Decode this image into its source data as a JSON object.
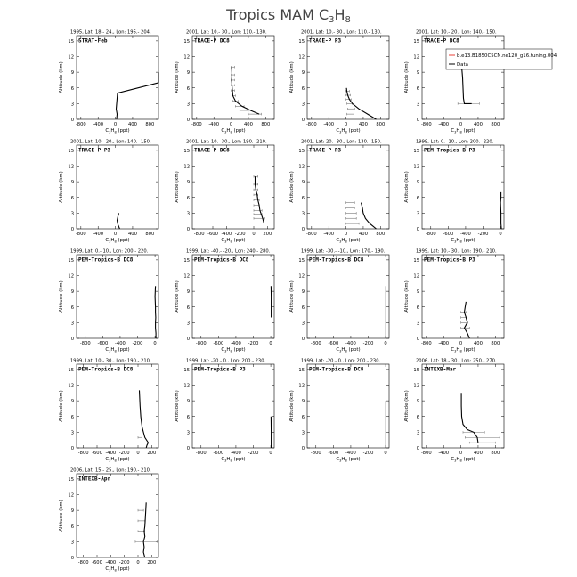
{
  "figure": {
    "title_main": "Tropics MAM C",
    "title_sub": "3",
    "title_main2": "H",
    "title_sub2": "8"
  },
  "axis_common": {
    "ylabel": "Altitude (km)",
    "xlabel_a": "C",
    "xlabel_sub1": "3",
    "xlabel_b": "H",
    "xlabel_sub2": "8",
    "xlabel_c": " (ppt)",
    "yticks": [
      "0",
      "3",
      "6",
      "9",
      "12",
      "15"
    ]
  },
  "legend": {
    "model": "b.e13.B1850C5CN.ne120_g16.tuning.004",
    "data": "Data",
    "colors": {
      "model": "#e8413a",
      "data": "#000000"
    }
  },
  "chart_data": [
    {
      "type": "line",
      "header": "1995, Lat: 18.- 24., Lon: 195.- 204.",
      "tag": "STRAT-Feb",
      "xticks": [
        "-800",
        "-400",
        "0",
        "400",
        "800"
      ],
      "xlim": [
        -900,
        1000
      ],
      "ylim": [
        0,
        16
      ],
      "series": [
        {
          "x": [
            30,
            40,
            20,
            30,
            40,
            50,
            1000,
            1000
          ],
          "y": [
            0,
            1,
            2,
            3,
            4,
            5,
            7,
            9
          ]
        }
      ],
      "errs": []
    },
    {
      "type": "line",
      "header": "2001, Lat: 10.- 30., Lon: 110.- 130.",
      "tag": "TRACE-P DC8",
      "xticks": [
        "-800",
        "-400",
        "0",
        "400",
        "800"
      ],
      "xlim": [
        -900,
        1000
      ],
      "ylim": [
        0,
        16
      ],
      "series": [
        {
          "x": [
            650,
            450,
            250,
            100,
            40,
            30,
            20,
            10,
            20,
            10
          ],
          "y": [
            1,
            1.7,
            2.5,
            3.5,
            4.5,
            5.5,
            6.5,
            7.5,
            8.5,
            10
          ]
        }
      ],
      "errs": [
        [
          550,
          150,
          1
        ],
        [
          300,
          100,
          1.7
        ],
        [
          200,
          100,
          2.5
        ],
        [
          100,
          60,
          3.5
        ],
        [
          60,
          40,
          4.5
        ],
        [
          40,
          40,
          5.5
        ],
        [
          40,
          40,
          6.5
        ],
        [
          40,
          40,
          7.5
        ],
        [
          40,
          40,
          8.5
        ],
        [
          40,
          40,
          10
        ]
      ]
    },
    {
      "type": "line",
      "header": "2001, Lat: 10.- 30., Lon: 110.- 130.",
      "tag": "TRACE-P P3",
      "xticks": [
        "-800",
        "-400",
        "0",
        "400",
        "800"
      ],
      "xlim": [
        -900,
        1000
      ],
      "ylim": [
        0,
        16
      ],
      "series": [
        {
          "x": [
            700,
            500,
            300,
            150,
            80,
            40,
            20,
            10
          ],
          "y": [
            0,
            1,
            2,
            3,
            3.8,
            4.6,
            5.4,
            6
          ]
        }
      ],
      "errs": [
        [
          100,
          80,
          1
        ],
        [
          120,
          80,
          2
        ],
        [
          80,
          60,
          3
        ],
        [
          60,
          60,
          3.8
        ],
        [
          50,
          50,
          4.6
        ],
        [
          40,
          40,
          5.4
        ]
      ]
    },
    {
      "type": "line",
      "header": "2001, Lat: 10.- 20., Lon: 140.- 150.",
      "tag": "TRACE-P DC8",
      "xticks": [
        "-800",
        "-400",
        "0",
        "400",
        "800"
      ],
      "xlim": [
        -900,
        1000
      ],
      "ylim": [
        0,
        16
      ],
      "series": [
        {
          "x": [
            250,
            80,
            60,
            50,
            40,
            30,
            20
          ],
          "y": [
            3,
            3,
            4,
            6,
            8,
            9,
            10
          ]
        }
      ],
      "errs": [
        [
          180,
          250,
          3
        ]
      ]
    },
    {
      "type": "line",
      "header": "2001, Lat: 10.- 20., Lon: 140.- 150.",
      "tag": "TRACE-P P3",
      "xticks": [
        "-800",
        "-400",
        "0",
        "400",
        "800"
      ],
      "xlim": [
        -900,
        1000
      ],
      "ylim": [
        0,
        16
      ],
      "series": [
        {
          "x": [
            100,
            60,
            40,
            60,
            80
          ],
          "y": [
            0,
            0.8,
            1.6,
            2.4,
            3
          ]
        }
      ],
      "errs": []
    },
    {
      "type": "line",
      "header": "2001, Lat: 10.- 30., Lon: 190.- 210.",
      "tag": "TRACE-P DC8",
      "xticks": [
        "-800",
        "-600",
        "-400",
        "-200",
        "0",
        "200"
      ],
      "xlim": [
        -900,
        300
      ],
      "ylim": [
        0,
        16
      ],
      "series": [
        {
          "x": [
            150,
            130,
            110,
            90,
            80,
            60,
            50,
            30,
            20,
            20
          ],
          "y": [
            1,
            2,
            2.8,
            3.5,
            4.5,
            5.5,
            6.5,
            7.5,
            8.5,
            10
          ]
        }
      ],
      "errs": [
        [
          80,
          80,
          2
        ],
        [
          60,
          60,
          2.8
        ],
        [
          60,
          60,
          3.5
        ],
        [
          40,
          40,
          4.5
        ],
        [
          40,
          40,
          5.5
        ],
        [
          30,
          30,
          6.5
        ],
        [
          30,
          30,
          7.5
        ],
        [
          30,
          30,
          8.5
        ],
        [
          30,
          30,
          10
        ]
      ]
    },
    {
      "type": "line",
      "header": "2001, Lat: 20.- 30., Lon: 130.- 150.",
      "tag": "TRACE-P P3",
      "xticks": [
        "-800",
        "-400",
        "0",
        "400",
        "800"
      ],
      "xlim": [
        -900,
        1000
      ],
      "ylim": [
        0,
        16
      ],
      "series": [
        {
          "x": [
            700,
            550,
            450,
            400,
            380,
            350
          ],
          "y": [
            0,
            1,
            2,
            3,
            4,
            5
          ]
        }
      ],
      "errs": [
        [
          150,
          150,
          1
        ],
        [
          120,
          120,
          2
        ],
        [
          120,
          120,
          3
        ],
        [
          100,
          100,
          4
        ],
        [
          100,
          100,
          5
        ]
      ]
    },
    {
      "type": "line",
      "header": "1999, Lat: 0.- 10., Lon: 200.- 220.",
      "tag": "PEM-Tropics-B P3",
      "xticks": [
        "-800",
        "-600",
        "-400",
        "-200",
        "0"
      ],
      "xlim": [
        -900,
        40
      ],
      "ylim": [
        0,
        16
      ],
      "series": [
        {
          "x": [
            10,
            5,
            5,
            0,
            5,
            5
          ],
          "y": [
            0,
            1,
            3,
            5,
            6,
            7
          ]
        }
      ],
      "errs": []
    },
    {
      "type": "line",
      "header": "1999, Lat: 0.- 10., Lon: 200.- 220.",
      "tag": "PEM-Tropics-B DC8",
      "xticks": [
        "-800",
        "-600",
        "-400",
        "-200",
        "0"
      ],
      "xlim": [
        -900,
        40
      ],
      "ylim": [
        0,
        16
      ],
      "series": [
        {
          "x": [
            10,
            10,
            5,
            5,
            8,
            5,
            5,
            0,
            5
          ],
          "y": [
            0,
            1,
            2,
            3,
            4,
            5,
            6,
            8,
            10
          ]
        }
      ],
      "errs": []
    },
    {
      "type": "line",
      "header": "1999, Lat: -40.- -20., Lon: 240.- 280.",
      "tag": "PEM-Tropics-B DC8",
      "xticks": [
        "-800",
        "-600",
        "-400",
        "-200",
        "0"
      ],
      "xlim": [
        -900,
        40
      ],
      "ylim": [
        0,
        16
      ],
      "series": [
        {
          "x": [
            5,
            5,
            5,
            3
          ],
          "y": [
            4,
            6,
            8,
            10
          ]
        }
      ],
      "errs": []
    },
    {
      "type": "line",
      "header": "1999, Lat: -30.- -10., Lon: 170.- 190.",
      "tag": "PEM-Tropics-B DC8",
      "xticks": [
        "-800",
        "-600",
        "-400",
        "-200",
        "0"
      ],
      "xlim": [
        -900,
        40
      ],
      "ylim": [
        0,
        16
      ],
      "series": [
        {
          "x": [
            3,
            3,
            3
          ],
          "y": [
            0,
            5,
            10
          ]
        }
      ],
      "errs": []
    },
    {
      "type": "line",
      "header": "1999, Lat: 10.- 30., Lon: 190.- 210.",
      "tag": "PEM-Tropics-B P3",
      "xticks": [
        "-800",
        "-400",
        "0",
        "400",
        "800"
      ],
      "xlim": [
        -900,
        1000
      ],
      "ylim": [
        0,
        16
      ],
      "series": [
        {
          "x": [
            200,
            150,
            80,
            150,
            120,
            80,
            100,
            120
          ],
          "y": [
            0,
            1,
            2,
            3,
            4,
            5,
            6,
            7
          ]
        }
      ],
      "errs": [
        [
          100,
          100,
          2
        ],
        [
          80,
          80,
          3
        ],
        [
          60,
          60,
          4
        ],
        [
          60,
          60,
          5
        ]
      ]
    },
    {
      "type": "line",
      "header": "1999, Lat: 10.- 30., Lon: 190.- 210.",
      "tag": "PEM-Tropics-B DC8",
      "xticks": [
        "-800",
        "-600",
        "-400",
        "-200",
        "0",
        "200"
      ],
      "xlim": [
        -900,
        300
      ],
      "ylim": [
        0,
        16
      ],
      "series": [
        {
          "x": [
            120,
            130,
            150,
            100,
            80,
            60,
            50,
            40,
            30,
            20
          ],
          "y": [
            0,
            0.5,
            1,
            2,
            3,
            4,
            5,
            6,
            8,
            11
          ]
        }
      ],
      "errs": [
        [
          30,
          30,
          2
        ]
      ]
    },
    {
      "type": "line",
      "header": "1999, Lat: -20.- 0., Lon: 200.- 230.",
      "tag": "PEM-Tropics-B P3",
      "xticks": [
        "-800",
        "-600",
        "-400",
        "-200",
        "0"
      ],
      "xlim": [
        -900,
        40
      ],
      "ylim": [
        0,
        16
      ],
      "series": [
        {
          "x": [
            5,
            5,
            3
          ],
          "y": [
            0,
            3,
            6
          ]
        }
      ],
      "errs": []
    },
    {
      "type": "line",
      "header": "1999, Lat: -20.- 0., Lon: 200.- 230.",
      "tag": "PEM-Tropics-B DC8",
      "xticks": [
        "-800",
        "-600",
        "-400",
        "-200",
        "0"
      ],
      "xlim": [
        -900,
        40
      ],
      "ylim": [
        0,
        16
      ],
      "series": [
        {
          "x": [
            3,
            3,
            3
          ],
          "y": [
            0,
            4,
            9
          ]
        }
      ],
      "errs": []
    },
    {
      "type": "line",
      "header": "2006, Lat: 18.- 30., Lon: 250.- 270.",
      "tag": "INTEXB-Mar",
      "xticks": [
        "-800",
        "-400",
        "0",
        "400",
        "800"
      ],
      "xlim": [
        -900,
        1000
      ],
      "ylim": [
        0,
        16
      ],
      "series": [
        {
          "x": [
            400,
            380,
            300,
            150,
            50,
            20,
            10,
            10
          ],
          "y": [
            1,
            2,
            3,
            3.5,
            4.5,
            6,
            8,
            10.5
          ]
        }
      ],
      "errs": [
        [
          500,
          300,
          1
        ],
        [
          500,
          400,
          2
        ],
        [
          300,
          250,
          3
        ]
      ]
    },
    {
      "type": "line",
      "header": "2006, Lat: 15.- 25., Lon: 190.- 210.",
      "tag": "INTEXB-Apr",
      "xticks": [
        "-800",
        "-600",
        "-400",
        "-200",
        "0",
        "200"
      ],
      "xlim": [
        -900,
        300
      ],
      "ylim": [
        0,
        16
      ],
      "series": [
        {
          "x": [
            100,
            80,
            90,
            80,
            100,
            90,
            100,
            110,
            120
          ],
          "y": [
            0,
            1,
            2,
            3,
            4,
            5,
            6,
            8,
            10.5
          ]
        }
      ],
      "errs": [
        [
          120,
          160,
          3
        ],
        [
          50,
          50,
          5
        ],
        [
          50,
          50,
          7
        ],
        [
          40,
          40,
          9
        ]
      ]
    }
  ]
}
